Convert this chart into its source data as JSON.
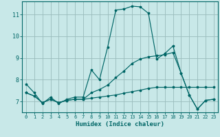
{
  "xlabel": "Humidex (Indice chaleur)",
  "background_color": "#c8e8e8",
  "grid_color": "#99bbbb",
  "line_color": "#006666",
  "xlim": [
    -0.5,
    23.5
  ],
  "ylim": [
    6.5,
    11.6
  ],
  "yticks": [
    7,
    8,
    9,
    10,
    11
  ],
  "xticks": [
    0,
    1,
    2,
    3,
    4,
    5,
    6,
    7,
    8,
    9,
    10,
    11,
    12,
    13,
    14,
    15,
    16,
    17,
    18,
    19,
    20,
    21,
    22,
    23
  ],
  "line1_x": [
    0,
    1,
    2,
    3,
    4,
    5,
    6,
    7,
    8,
    9,
    10,
    11,
    12,
    13,
    14,
    15,
    16,
    17,
    18,
    19,
    20,
    21,
    22,
    23
  ],
  "line1_y": [
    7.8,
    7.4,
    6.9,
    7.2,
    6.9,
    7.1,
    7.2,
    7.2,
    8.45,
    8.0,
    9.5,
    11.2,
    11.25,
    11.38,
    11.35,
    11.05,
    8.95,
    9.2,
    9.55,
    8.3,
    7.3,
    6.65,
    7.05,
    7.1
  ],
  "line2_x": [
    0,
    1,
    2,
    3,
    4,
    5,
    6,
    7,
    8,
    9,
    10,
    11,
    12,
    13,
    14,
    15,
    16,
    17,
    18,
    19,
    20,
    21,
    22,
    23
  ],
  "line2_y": [
    7.4,
    7.25,
    6.95,
    7.1,
    6.95,
    7.05,
    7.1,
    7.1,
    7.15,
    7.2,
    7.25,
    7.3,
    7.38,
    7.45,
    7.52,
    7.6,
    7.65,
    7.65,
    7.65,
    7.65,
    7.65,
    7.65,
    7.65,
    7.65
  ],
  "line3_x": [
    0,
    1,
    2,
    3,
    4,
    5,
    6,
    7,
    8,
    9,
    10,
    11,
    12,
    13,
    14,
    15,
    16,
    17,
    18,
    19,
    20,
    21,
    22,
    23
  ],
  "line3_y": [
    7.4,
    7.25,
    6.95,
    7.1,
    6.95,
    7.05,
    7.1,
    7.1,
    7.4,
    7.55,
    7.75,
    8.1,
    8.4,
    8.75,
    8.95,
    9.05,
    9.1,
    9.15,
    9.25,
    8.3,
    7.3,
    6.65,
    7.05,
    7.1
  ]
}
